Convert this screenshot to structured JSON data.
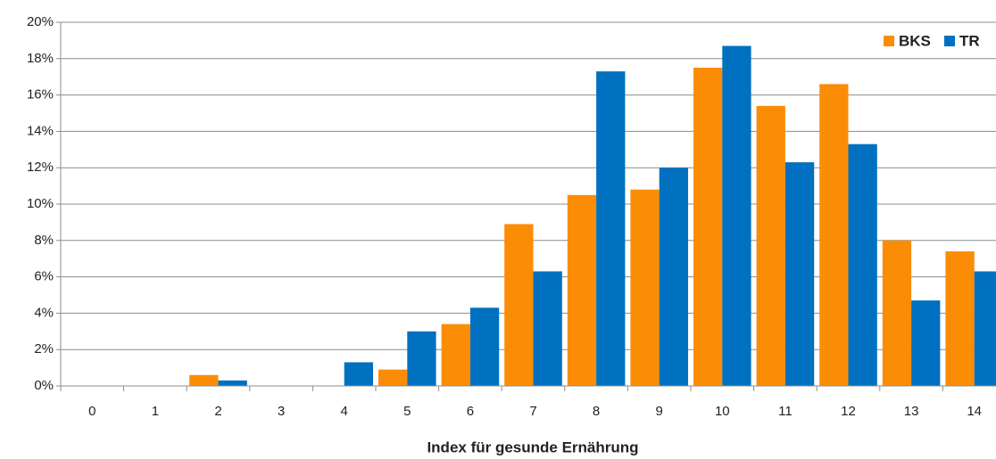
{
  "chart_data": {
    "type": "bar",
    "x_label": "Index für gesunde Ernährung",
    "categories": [
      "0",
      "1",
      "2",
      "3",
      "4",
      "5",
      "6",
      "7",
      "8",
      "9",
      "10",
      "11",
      "12",
      "13",
      "14"
    ],
    "series": [
      {
        "name": "BKS",
        "color": "#fb8c05",
        "values": [
          0,
          0,
          0.6,
          0,
          0,
          0.9,
          3.4,
          8.9,
          10.5,
          10.8,
          17.5,
          15.4,
          16.6,
          8.0,
          7.4
        ]
      },
      {
        "name": "TR",
        "color": "#0070c0",
        "values": [
          0,
          0,
          0.3,
          0,
          1.3,
          3.0,
          4.3,
          6.3,
          17.3,
          12.0,
          18.7,
          12.3,
          13.3,
          4.7,
          6.3
        ]
      }
    ],
    "ylim": [
      0,
      20
    ],
    "yticks": [
      {
        "value": 0,
        "label": "0%"
      },
      {
        "value": 2,
        "label": "2%"
      },
      {
        "value": 4,
        "label": "4%"
      },
      {
        "value": 6,
        "label": "6%"
      },
      {
        "value": 8,
        "label": "8%"
      },
      {
        "value": 10,
        "label": "10%"
      },
      {
        "value": 12,
        "label": "12%"
      },
      {
        "value": 14,
        "label": "14%"
      },
      {
        "value": 16,
        "label": "16%"
      },
      {
        "value": 18,
        "label": "18%"
      },
      {
        "value": 20,
        "label": "20%"
      }
    ],
    "grid": true,
    "legend": "top-right"
  }
}
